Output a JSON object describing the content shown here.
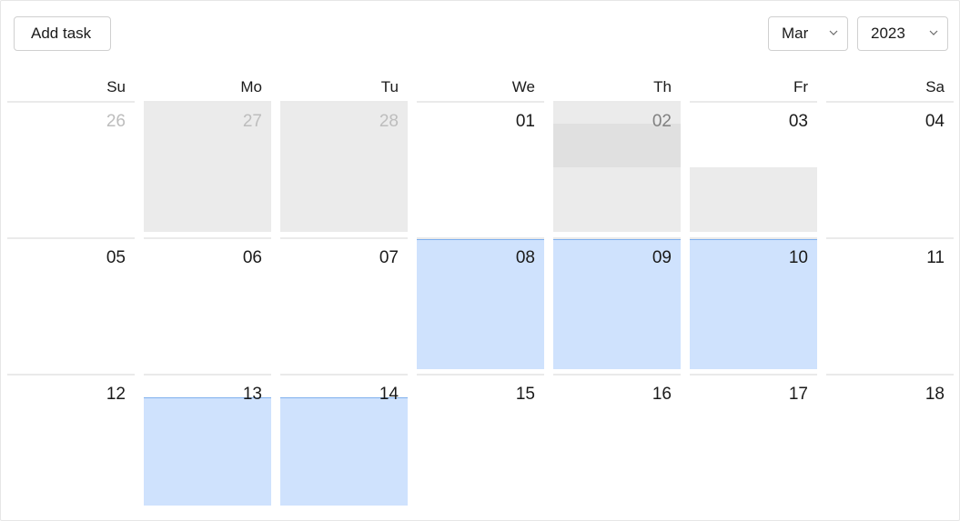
{
  "toolbar": {
    "add_task_label": "Add task",
    "month_value": "Mar",
    "year_value": "2023"
  },
  "weekdays": [
    "Su",
    "Mo",
    "Tu",
    "We",
    "Th",
    "Fr",
    "Sa"
  ],
  "weeks": [
    [
      "26",
      "27",
      "28",
      "01",
      "02",
      "03",
      "04"
    ],
    [
      "05",
      "06",
      "07",
      "08",
      "09",
      "10",
      "11"
    ],
    [
      "12",
      "13",
      "14",
      "15",
      "16",
      "17",
      "18"
    ]
  ],
  "colors": {
    "selected_range": "#cfe2fd",
    "outside_month": "#ebebeb",
    "border": "#d0d0d0"
  }
}
